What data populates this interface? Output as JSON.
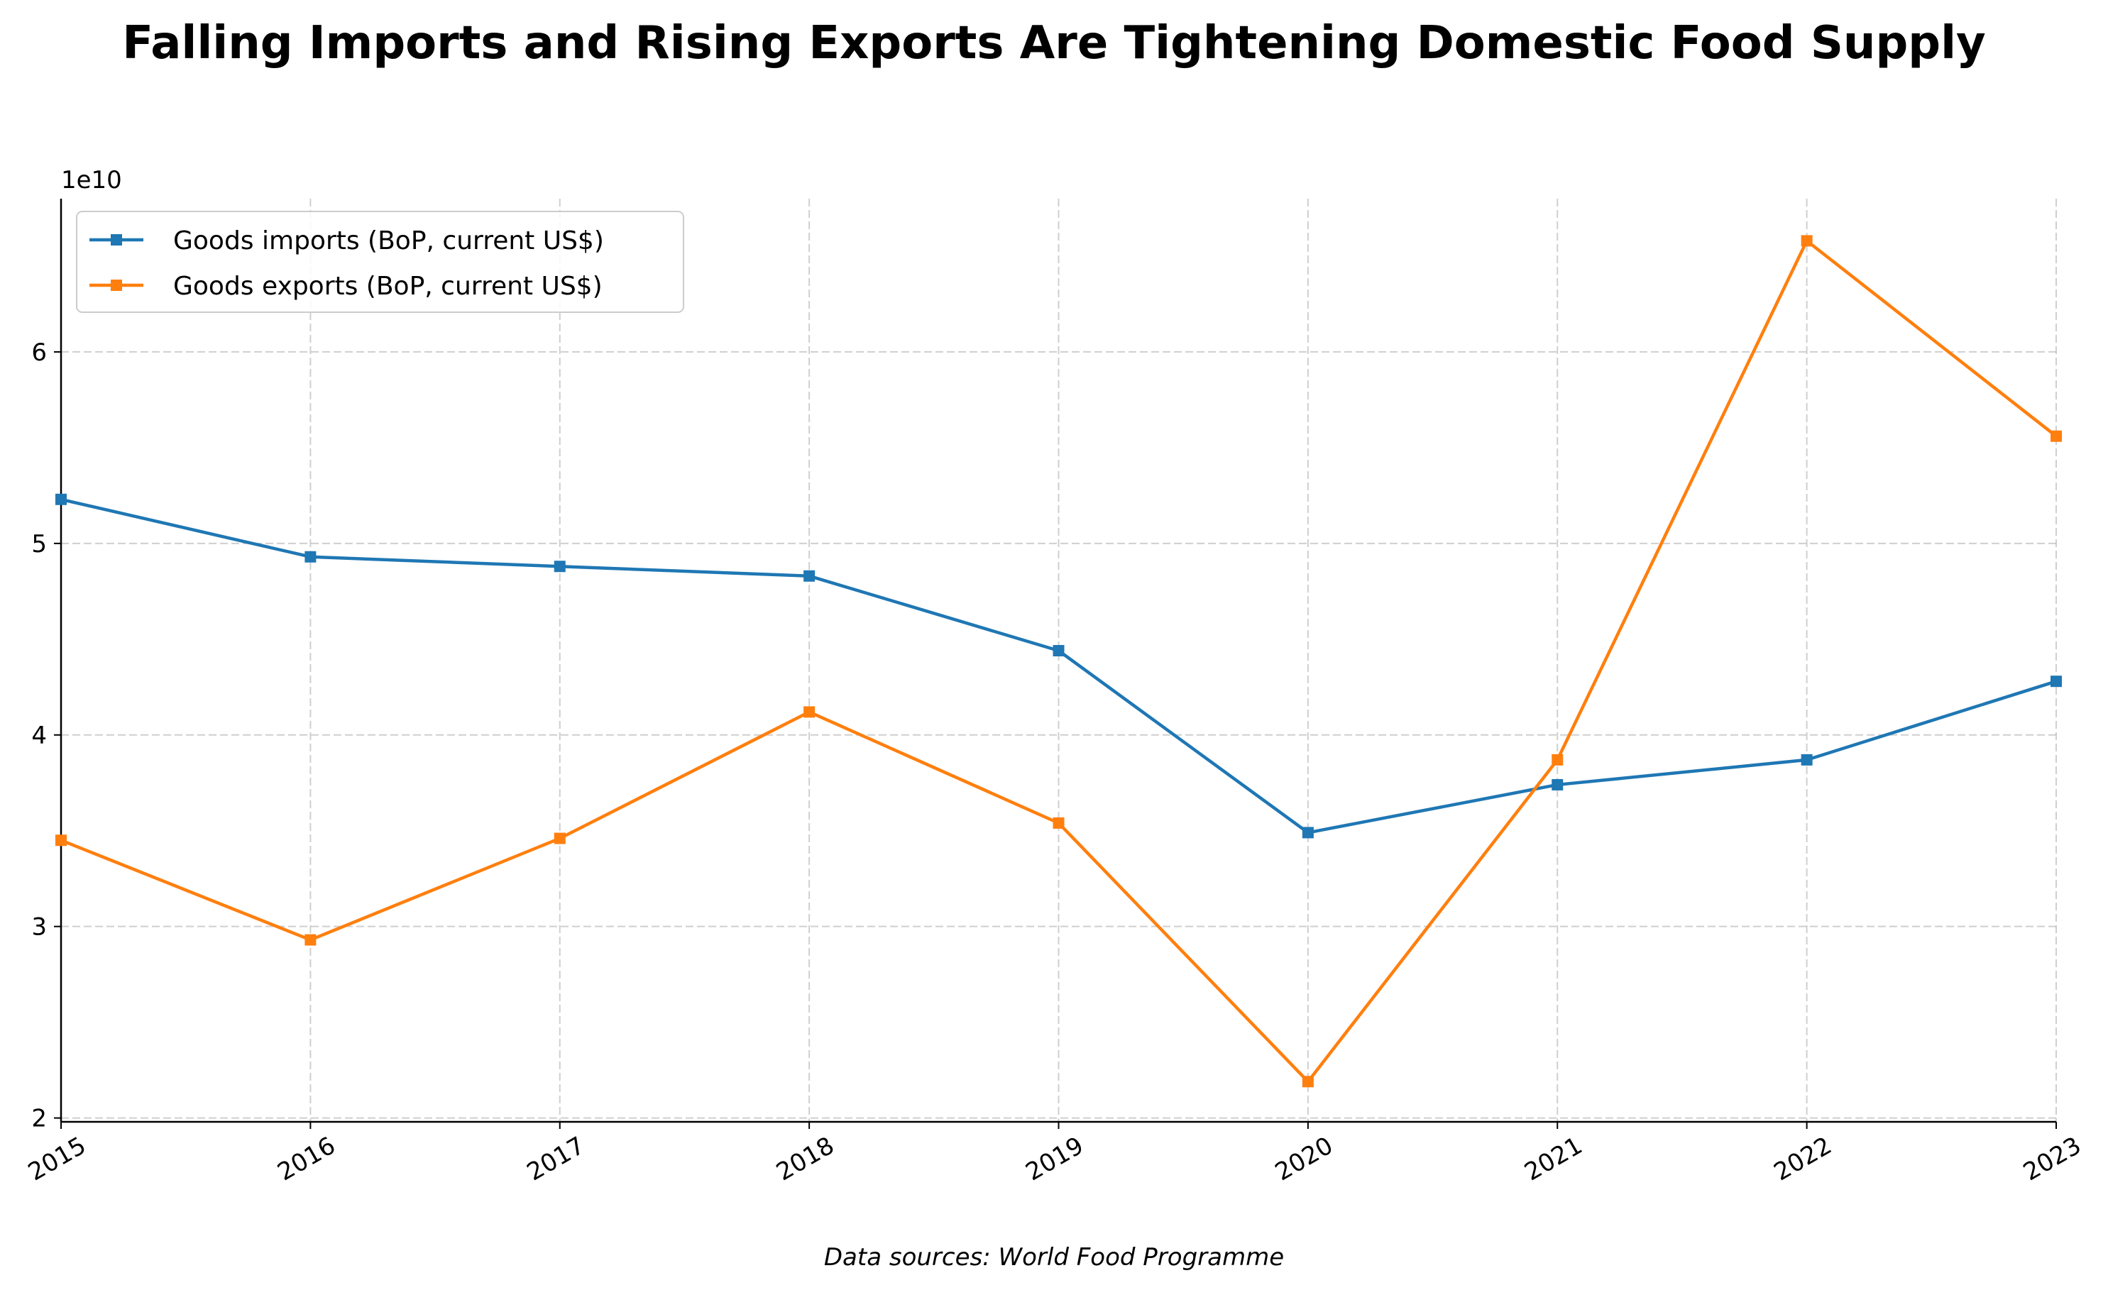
{
  "chart_data": {
    "type": "line",
    "title": "Falling Imports and Rising Exports Are Tightening Domestic Food Supply",
    "xlabel": "",
    "ylabel": "",
    "y_scale_label": "1e10",
    "x": [
      "2015",
      "2016",
      "2017",
      "2018",
      "2019",
      "2020",
      "2021",
      "2022",
      "2023"
    ],
    "xlim": [
      2015,
      2023
    ],
    "ylim": [
      1.98,
      6.8
    ],
    "y_ticks": [
      2,
      3,
      4,
      5,
      6
    ],
    "y_tick_labels": [
      "2",
      "3",
      "4",
      "5",
      "6"
    ],
    "grid": true,
    "legend_position": "top-left",
    "series": [
      {
        "name": "Goods imports (BoP, current US$)",
        "color": "#1f77b4",
        "marker": "square",
        "values": [
          5.23,
          4.93,
          4.88,
          4.83,
          4.44,
          3.49,
          3.74,
          3.87,
          4.28
        ]
      },
      {
        "name": "Goods exports (BoP, current US$)",
        "color": "#ff7f0e",
        "marker": "square",
        "values": [
          3.45,
          2.93,
          3.46,
          4.12,
          3.54,
          2.19,
          3.87,
          6.58,
          5.56
        ]
      }
    ],
    "source_note": "Data sources: World Food Programme"
  }
}
